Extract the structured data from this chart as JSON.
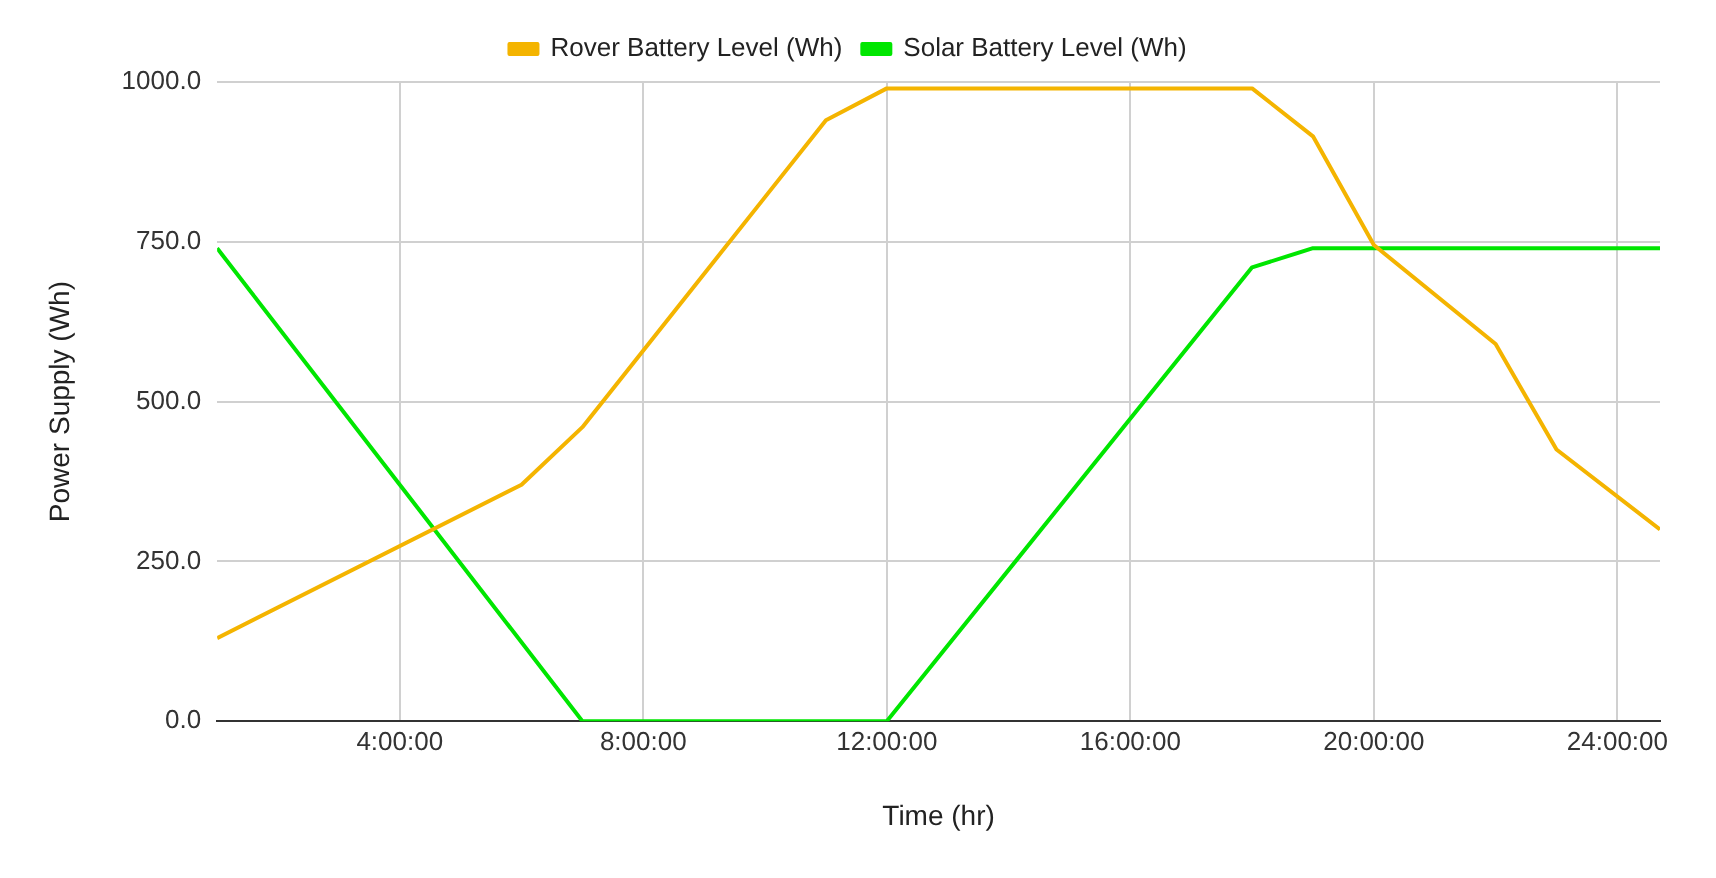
{
  "chart_data": {
    "type": "line",
    "xlabel": "Time (hr)",
    "ylabel": "Power Supply (Wh)",
    "series": [
      {
        "name": "Rover Battery Level (Wh)",
        "color": "#f4b400",
        "x": [
          1,
          6,
          7,
          11,
          12,
          18,
          19,
          20,
          22,
          23,
          24.7
        ],
        "values": [
          130,
          370,
          460,
          940,
          990,
          990,
          915,
          745,
          590,
          425,
          300
        ]
      },
      {
        "name": "Solar Battery Level (Wh)",
        "color": "#00e600",
        "x": [
          1,
          7,
          12,
          18,
          19,
          24.7
        ],
        "values": [
          740,
          0,
          0,
          710,
          740,
          740
        ]
      }
    ],
    "xlim": [
      1,
      24.7
    ],
    "xticks": [
      {
        "value": 4,
        "label": "4:00:00"
      },
      {
        "value": 8,
        "label": "8:00:00"
      },
      {
        "value": 12,
        "label": "12:00:00"
      },
      {
        "value": 16,
        "label": "16:00:00"
      },
      {
        "value": 20,
        "label": "20:00:00"
      },
      {
        "value": 24,
        "label": "24:00:00"
      }
    ],
    "ylim": [
      0,
      1000
    ],
    "yticks": [
      {
        "value": 0,
        "label": "0.0"
      },
      {
        "value": 250,
        "label": "250.0"
      },
      {
        "value": 500,
        "label": "500.0"
      },
      {
        "value": 750,
        "label": "750.0"
      },
      {
        "value": 1000,
        "label": "1000.0"
      }
    ],
    "grid": true,
    "legend": "top",
    "marker": "none",
    "line_style": "solid"
  }
}
